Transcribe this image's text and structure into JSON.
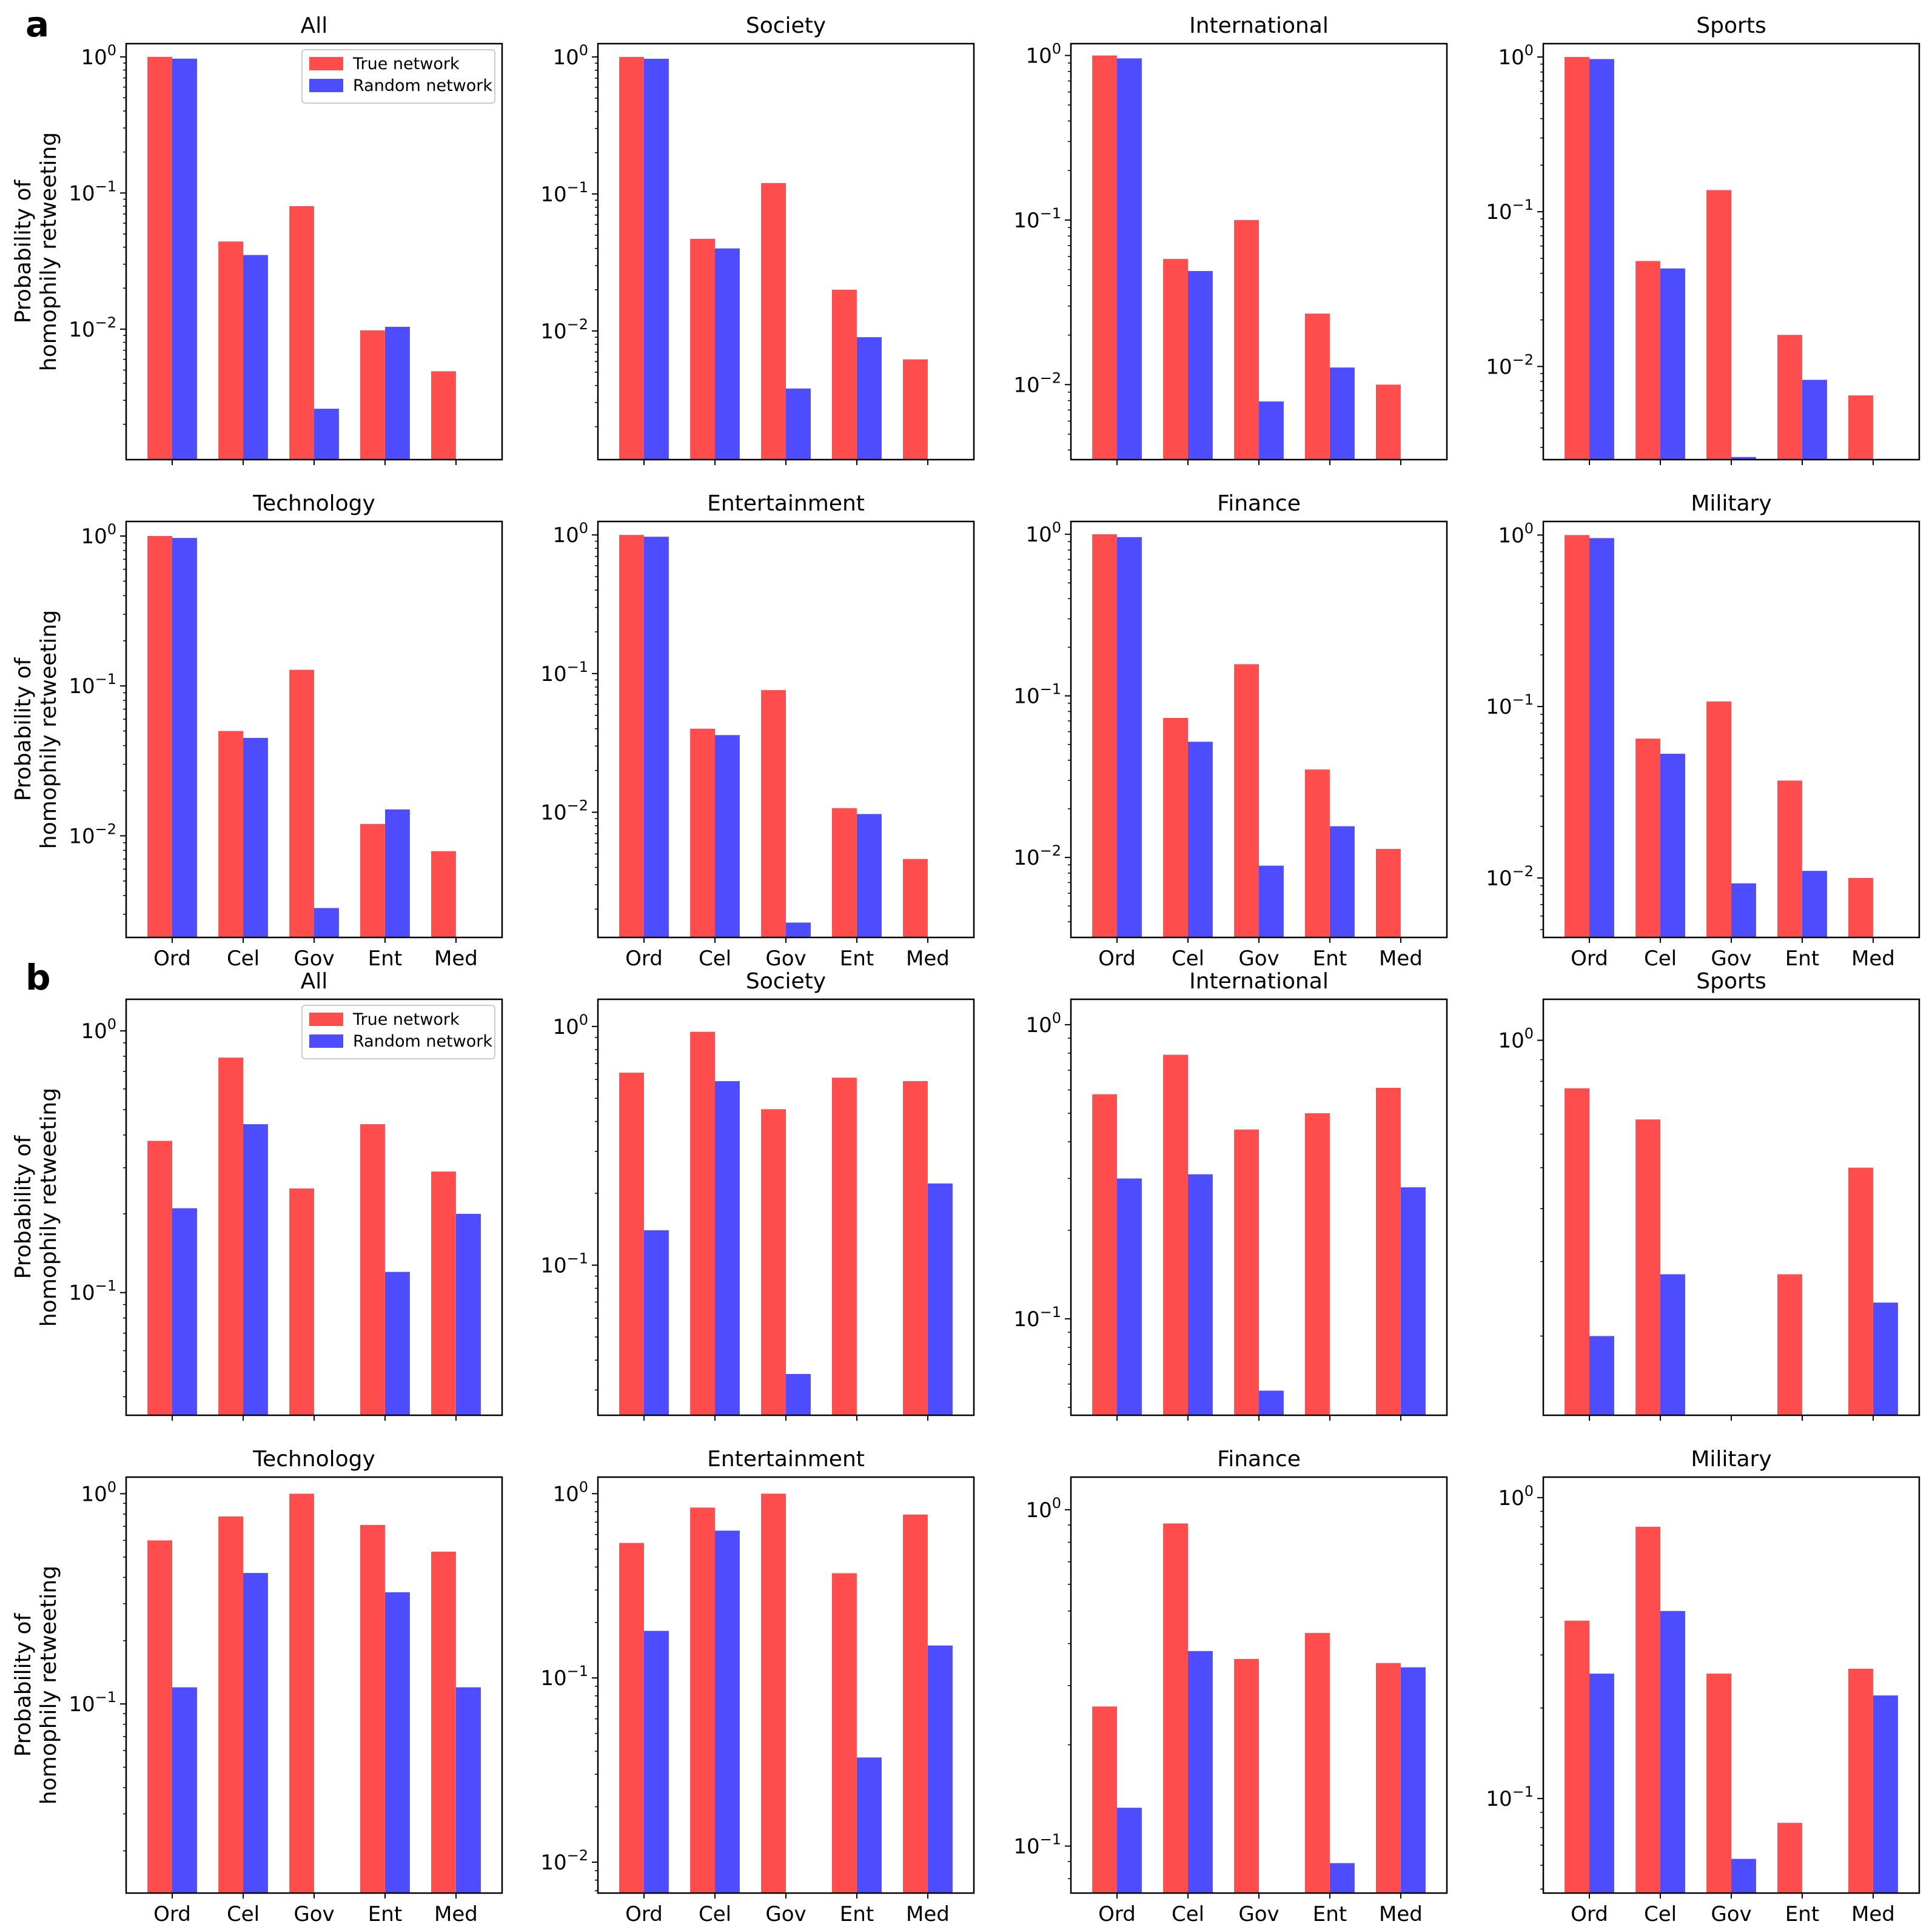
{
  "figure": {
    "panel_labels": [
      "a",
      "b"
    ]
  },
  "style": {
    "true_color": "#ff4d4d",
    "random_color": "#4d4dff"
  },
  "chart_data": [
    {
      "panel": "a",
      "type": "bar",
      "title": "All",
      "categories": [
        "Ord",
        "Cel",
        "Gov",
        "Ent",
        "Med"
      ],
      "series": [
        {
          "name": "True network",
          "values": [
            1.0,
            0.044,
            0.08,
            0.0098,
            0.0049
          ]
        },
        {
          "name": "Random network",
          "values": [
            0.97,
            0.035,
            0.0026,
            0.0104,
            null
          ]
        }
      ],
      "yscale": "log",
      "ylim": [
        0.0011,
        1.25
      ],
      "yticks": [
        {
          "exp": 0,
          "value": 1
        },
        {
          "exp": -1,
          "value": 0.1
        },
        {
          "exp": -2,
          "value": 0.01
        }
      ],
      "ylabel": "Probability of homophily retweeting",
      "show_xticklabels": false,
      "legend": {
        "entries": [
          "True network",
          "Random network"
        ],
        "loc": "upper right"
      }
    },
    {
      "panel": "a",
      "type": "bar",
      "title": "Society",
      "categories": [
        "Ord",
        "Cel",
        "Gov",
        "Ent",
        "Med"
      ],
      "series": [
        {
          "name": "True network",
          "values": [
            1.0,
            0.047,
            0.12,
            0.02,
            0.0062
          ]
        },
        {
          "name": "Random network",
          "values": [
            0.97,
            0.04,
            0.0038,
            0.009,
            null
          ]
        }
      ],
      "yscale": "log",
      "ylim": [
        0.00115,
        1.25
      ],
      "yticks": [
        {
          "exp": 0,
          "value": 1
        },
        {
          "exp": -1,
          "value": 0.1
        },
        {
          "exp": -2,
          "value": 0.01
        }
      ],
      "show_xticklabels": false
    },
    {
      "panel": "a",
      "type": "bar",
      "title": "International",
      "categories": [
        "Ord",
        "Cel",
        "Gov",
        "Ent",
        "Med"
      ],
      "series": [
        {
          "name": "True network",
          "values": [
            1.0,
            0.058,
            0.1,
            0.027,
            0.01
          ]
        },
        {
          "name": "Random network",
          "values": [
            0.96,
            0.049,
            0.0079,
            0.0127,
            null
          ]
        }
      ],
      "yscale": "log",
      "ylim": [
        0.0035,
        1.18
      ],
      "yticks": [
        {
          "exp": 0,
          "value": 1
        },
        {
          "exp": -1,
          "value": 0.1
        },
        {
          "exp": -2,
          "value": 0.01
        }
      ],
      "show_xticklabels": false
    },
    {
      "panel": "a",
      "type": "bar",
      "title": "Sports",
      "categories": [
        "Ord",
        "Cel",
        "Gov",
        "Ent",
        "Med"
      ],
      "series": [
        {
          "name": "True network",
          "values": [
            1.0,
            0.048,
            0.138,
            0.016,
            0.0065
          ]
        },
        {
          "name": "Random network",
          "values": [
            0.97,
            0.043,
            0.0026,
            0.0082,
            null
          ]
        }
      ],
      "yscale": "log",
      "ylim": [
        0.0025,
        1.22
      ],
      "yticks": [
        {
          "exp": 0,
          "value": 1
        },
        {
          "exp": -1,
          "value": 0.1
        },
        {
          "exp": -2,
          "value": 0.01
        }
      ],
      "show_xticklabels": false
    },
    {
      "panel": "a",
      "type": "bar",
      "title": "Technology",
      "categories": [
        "Ord",
        "Cel",
        "Gov",
        "Ent",
        "Med"
      ],
      "series": [
        {
          "name": "True network",
          "values": [
            1.0,
            0.05,
            0.128,
            0.012,
            0.0079
          ]
        },
        {
          "name": "Random network",
          "values": [
            0.97,
            0.045,
            0.0033,
            0.015,
            null
          ]
        }
      ],
      "yscale": "log",
      "ylim": [
        0.0021,
        1.25
      ],
      "yticks": [
        {
          "exp": 0,
          "value": 1
        },
        {
          "exp": -1,
          "value": 0.1
        },
        {
          "exp": -2,
          "value": 0.01
        }
      ],
      "ylabel": "Probability of homophily retweeting",
      "show_xticklabels": true
    },
    {
      "panel": "a",
      "type": "bar",
      "title": "Entertainment",
      "categories": [
        "Ord",
        "Cel",
        "Gov",
        "Ent",
        "Med"
      ],
      "series": [
        {
          "name": "True network",
          "values": [
            1.0,
            0.04,
            0.076,
            0.0107,
            0.0046
          ]
        },
        {
          "name": "Random network",
          "values": [
            0.97,
            0.036,
            0.0016,
            0.0097,
            null
          ]
        }
      ],
      "yscale": "log",
      "ylim": [
        0.00125,
        1.25
      ],
      "yticks": [
        {
          "exp": 0,
          "value": 1
        },
        {
          "exp": -1,
          "value": 0.1
        },
        {
          "exp": -2,
          "value": 0.01
        }
      ],
      "show_xticklabels": true
    },
    {
      "panel": "a",
      "type": "bar",
      "title": "Finance",
      "categories": [
        "Ord",
        "Cel",
        "Gov",
        "Ent",
        "Med"
      ],
      "series": [
        {
          "name": "True network",
          "values": [
            1.0,
            0.073,
            0.157,
            0.035,
            0.0113
          ]
        },
        {
          "name": "Random network",
          "values": [
            0.96,
            0.052,
            0.0089,
            0.0156,
            null
          ]
        }
      ],
      "yscale": "log",
      "ylim": [
        0.0032,
        1.2
      ],
      "yticks": [
        {
          "exp": 0,
          "value": 1
        },
        {
          "exp": -1,
          "value": 0.1
        },
        {
          "exp": -2,
          "value": 0.01
        }
      ],
      "show_xticklabels": true
    },
    {
      "panel": "a",
      "type": "bar",
      "title": "Military",
      "categories": [
        "Ord",
        "Cel",
        "Gov",
        "Ent",
        "Med"
      ],
      "series": [
        {
          "name": "True network",
          "values": [
            1.0,
            0.065,
            0.107,
            0.037,
            0.01
          ]
        },
        {
          "name": "Random network",
          "values": [
            0.96,
            0.053,
            0.0093,
            0.011,
            null
          ]
        }
      ],
      "yscale": "log",
      "ylim": [
        0.0045,
        1.2
      ],
      "yticks": [
        {
          "exp": 0,
          "value": 1
        },
        {
          "exp": -1,
          "value": 0.1
        },
        {
          "exp": -2,
          "value": 0.01
        }
      ],
      "show_xticklabels": true
    },
    {
      "panel": "b",
      "type": "bar",
      "title": "All",
      "categories": [
        "Ord",
        "Cel",
        "Gov",
        "Ent",
        "Med"
      ],
      "series": [
        {
          "name": "True network",
          "values": [
            0.38,
            0.79,
            0.25,
            0.44,
            0.29
          ]
        },
        {
          "name": "Random network",
          "values": [
            0.21,
            0.44,
            null,
            0.12,
            0.2
          ]
        }
      ],
      "yscale": "log",
      "ylim": [
        0.034,
        1.32
      ],
      "yticks": [
        {
          "exp": 0,
          "value": 1
        },
        {
          "exp": -1,
          "value": 0.1
        }
      ],
      "ylabel": "Probability of homophily retweeting",
      "show_xticklabels": false,
      "legend": {
        "entries": [
          "True network",
          "Random network"
        ],
        "loc": "upper right"
      }
    },
    {
      "panel": "b",
      "type": "bar",
      "title": "Society",
      "categories": [
        "Ord",
        "Cel",
        "Gov",
        "Ent",
        "Med"
      ],
      "series": [
        {
          "name": "True network",
          "values": [
            0.64,
            0.95,
            0.45,
            0.61,
            0.59
          ]
        },
        {
          "name": "Random network",
          "values": [
            0.14,
            0.59,
            0.035,
            null,
            0.22
          ]
        }
      ],
      "yscale": "log",
      "ylim": [
        0.0235,
        1.3
      ],
      "yticks": [
        {
          "exp": 0,
          "value": 1
        },
        {
          "exp": -1,
          "value": 0.1
        }
      ],
      "show_xticklabels": false
    },
    {
      "panel": "b",
      "type": "bar",
      "title": "International",
      "categories": [
        "Ord",
        "Cel",
        "Gov",
        "Ent",
        "Med"
      ],
      "series": [
        {
          "name": "True network",
          "values": [
            0.58,
            0.79,
            0.44,
            0.5,
            0.61
          ]
        },
        {
          "name": "Random network",
          "values": [
            0.3,
            0.31,
            0.057,
            null,
            0.28
          ]
        }
      ],
      "yscale": "log",
      "ylim": [
        0.047,
        1.22
      ],
      "yticks": [
        {
          "exp": 0,
          "value": 1
        },
        {
          "exp": -1,
          "value": 0.1
        }
      ],
      "show_xticklabels": false
    },
    {
      "panel": "b",
      "type": "bar",
      "title": "Sports",
      "categories": [
        "Ord",
        "Cel",
        "Gov",
        "Ent",
        "Med"
      ],
      "series": [
        {
          "name": "True network",
          "values": [
            0.77,
            0.65,
            null,
            0.28,
            0.5
          ]
        },
        {
          "name": "Random network",
          "values": [
            0.2,
            0.28,
            null,
            null,
            0.24
          ]
        }
      ],
      "yscale": "log",
      "ylim": [
        0.13,
        1.25
      ],
      "yticks": [
        {
          "exp": 0,
          "value": 1
        }
      ],
      "show_xticklabels": false
    },
    {
      "panel": "b",
      "type": "bar",
      "title": "Technology",
      "categories": [
        "Ord",
        "Cel",
        "Gov",
        "Ent",
        "Med"
      ],
      "series": [
        {
          "name": "True network",
          "values": [
            0.6,
            0.78,
            1.0,
            0.71,
            0.53
          ]
        },
        {
          "name": "Random network",
          "values": [
            0.12,
            0.42,
            null,
            0.34,
            0.12
          ]
        }
      ],
      "yscale": "log",
      "ylim": [
        0.0126,
        1.2
      ],
      "yticks": [
        {
          "exp": 0,
          "value": 1
        },
        {
          "exp": -1,
          "value": 0.1
        }
      ],
      "ylabel": "Probability of homophily retweeting",
      "show_xticklabels": true
    },
    {
      "panel": "b",
      "type": "bar",
      "title": "Entertainment",
      "categories": [
        "Ord",
        "Cel",
        "Gov",
        "Ent",
        "Med"
      ],
      "series": [
        {
          "name": "True network",
          "values": [
            0.54,
            0.84,
            1.0,
            0.37,
            0.77
          ]
        },
        {
          "name": "Random network",
          "values": [
            0.18,
            0.63,
            null,
            0.037,
            0.15
          ]
        }
      ],
      "yscale": "log",
      "ylim": [
        0.0068,
        1.23
      ],
      "yticks": [
        {
          "exp": 0,
          "value": 1
        },
        {
          "exp": -1,
          "value": 0.1
        },
        {
          "exp": -2,
          "value": 0.01
        }
      ],
      "show_xticklabels": true
    },
    {
      "panel": "b",
      "type": "bar",
      "title": "Finance",
      "categories": [
        "Ord",
        "Cel",
        "Gov",
        "Ent",
        "Med"
      ],
      "series": [
        {
          "name": "True network",
          "values": [
            0.26,
            0.91,
            0.36,
            0.43,
            0.35
          ]
        },
        {
          "name": "Random network",
          "values": [
            0.13,
            0.38,
            null,
            0.089,
            0.34
          ]
        }
      ],
      "yscale": "log",
      "ylim": [
        0.0725,
        1.25
      ],
      "yticks": [
        {
          "exp": 0,
          "value": 1
        },
        {
          "exp": -1,
          "value": 0.1
        }
      ],
      "show_xticklabels": true
    },
    {
      "panel": "b",
      "type": "bar",
      "title": "Military",
      "categories": [
        "Ord",
        "Cel",
        "Gov",
        "Ent",
        "Med"
      ],
      "series": [
        {
          "name": "True network",
          "values": [
            0.39,
            0.8,
            0.26,
            0.083,
            0.27
          ]
        },
        {
          "name": "Random network",
          "values": [
            0.26,
            0.42,
            0.063,
            null,
            0.22
          ]
        }
      ],
      "yscale": "log",
      "ylim": [
        0.0485,
        1.17
      ],
      "yticks": [
        {
          "exp": 0,
          "value": 1
        },
        {
          "exp": -1,
          "value": 0.1
        }
      ],
      "show_xticklabels": true
    }
  ]
}
